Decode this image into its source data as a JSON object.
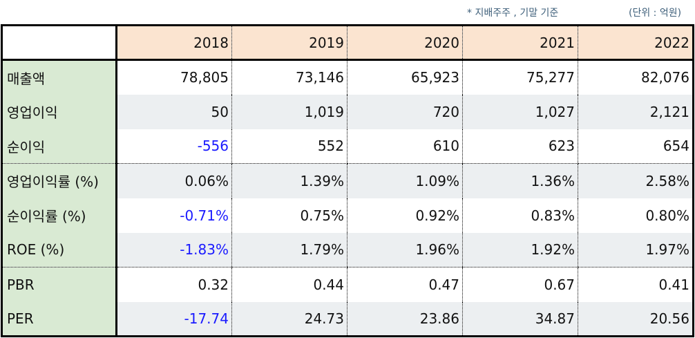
{
  "notes": {
    "basis": "* 지배주주 , 기말 기준",
    "unit": "(단위 : 억원)"
  },
  "years": [
    "2018",
    "2019",
    "2020",
    "2021",
    "2022"
  ],
  "rows": [
    {
      "label": "매출액",
      "values": [
        "78,805",
        "73,146",
        "65,923",
        "75,277",
        "82,076"
      ]
    },
    {
      "label": "영업이익",
      "values": [
        "50",
        "1,019",
        "720",
        "1,027",
        "2,121"
      ]
    },
    {
      "label": "순이익",
      "values": [
        "-556",
        "552",
        "610",
        "623",
        "654"
      ]
    },
    {
      "label": "영업이익률 (%)",
      "values": [
        "0.06%",
        "1.39%",
        "1.09%",
        "1.36%",
        "2.58%"
      ]
    },
    {
      "label": "순이익률 (%)",
      "values": [
        "-0.71%",
        "0.75%",
        "0.92%",
        "0.83%",
        "0.80%"
      ]
    },
    {
      "label": "ROE (%)",
      "values": [
        "-1.83%",
        "1.79%",
        "1.96%",
        "1.92%",
        "1.97%"
      ]
    },
    {
      "label": "PBR",
      "values": [
        "0.32",
        "0.44",
        "0.47",
        "0.67",
        "0.41"
      ]
    },
    {
      "label": "PER",
      "values": [
        "-17.74",
        "24.73",
        "23.86",
        "34.87",
        "20.56"
      ]
    }
  ],
  "colors": {
    "negative": "#1a1aff",
    "header_bg": "#fbe4d0",
    "label_bg": "#d9ead3",
    "alt_row_bg": "#eceff1"
  }
}
